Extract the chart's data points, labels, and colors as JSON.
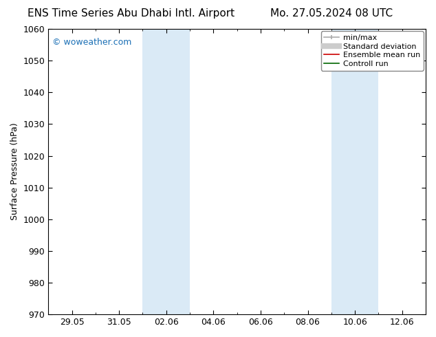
{
  "title_left": "ENS Time Series Abu Dhabi Intl. Airport",
  "title_right": "Mo. 27.05.2024 08 UTC",
  "ylabel": "Surface Pressure (hPa)",
  "ylim": [
    970,
    1060
  ],
  "yticks": [
    970,
    980,
    990,
    1000,
    1010,
    1020,
    1030,
    1040,
    1050,
    1060
  ],
  "xtick_labels": [
    "29.05",
    "31.05",
    "02.06",
    "04.06",
    "06.06",
    "08.06",
    "10.06",
    "12.06"
  ],
  "xtick_major_positions": [
    2,
    4,
    6,
    8,
    10,
    12,
    14,
    16
  ],
  "xtick_minor_positions": [
    1,
    2,
    3,
    4,
    5,
    6,
    7,
    8,
    9,
    10,
    11,
    12,
    13,
    14,
    15,
    16
  ],
  "xlim": [
    1,
    17
  ],
  "shaded_bands": [
    {
      "x_start": 5.0,
      "x_end": 6.0
    },
    {
      "x_start": 6.0,
      "x_end": 7.0
    },
    {
      "x_start": 13.0,
      "x_end": 14.0
    },
    {
      "x_start": 14.0,
      "x_end": 15.0
    }
  ],
  "shade_color": "#daeaf6",
  "watermark": "© woweather.com",
  "watermark_color": "#1a6fb5",
  "bg_color": "#ffffff",
  "title_fontsize": 11,
  "tick_fontsize": 9,
  "legend_fontsize": 8,
  "ylabel_fontsize": 9
}
